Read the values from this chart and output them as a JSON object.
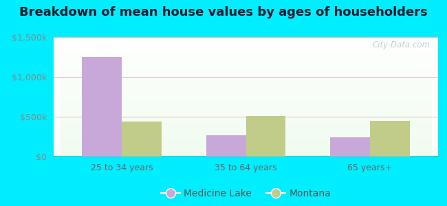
{
  "title": "Breakdown of mean house values by ages of householders",
  "categories": [
    "25 to 34 years",
    "35 to 64 years",
    "65 years+"
  ],
  "medicine_lake_values": [
    1250000,
    270000,
    245000
  ],
  "montana_values": [
    440000,
    510000,
    450000
  ],
  "ylim": [
    0,
    1500000
  ],
  "yticks": [
    0,
    500000,
    1000000,
    1500000
  ],
  "ytick_labels": [
    "$0",
    "$500k",
    "$1,000k",
    "$1,500k"
  ],
  "medicine_lake_color": "#c8a8d8",
  "montana_color": "#c0cc88",
  "background_outer": "#00eeff",
  "bar_width": 0.32,
  "legend_medicine_lake": "Medicine Lake",
  "legend_montana": "Montana",
  "watermark": "City-Data.com",
  "title_fontsize": 13,
  "tick_fontsize": 9,
  "legend_fontsize": 10
}
